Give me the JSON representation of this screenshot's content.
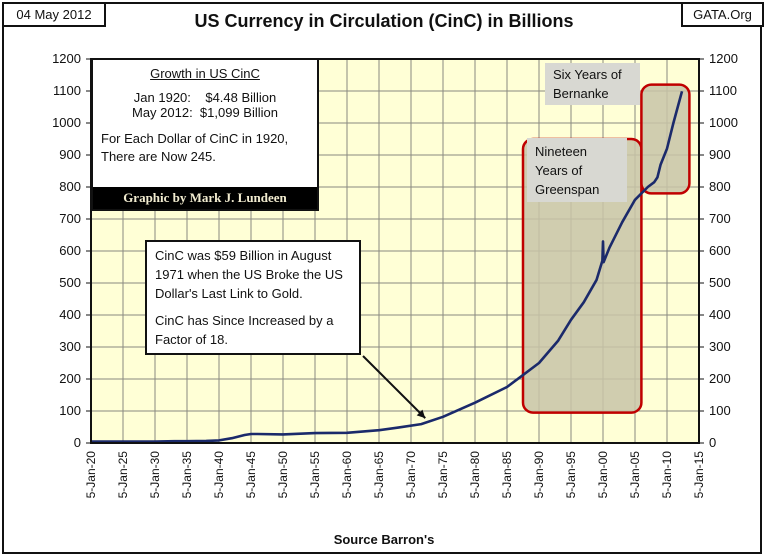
{
  "header": {
    "date": "04 May 2012",
    "title": "US Currency in Circulation (CinC) in Billions",
    "site": "GATA.Org"
  },
  "info_box": {
    "heading": "Growth in US CinC",
    "line1": "Jan 1920:    $4.48 Billion",
    "line2": "May 2012:  $1,099 Billion",
    "line3": "For Each Dollar of CinC in 1920,",
    "line4": "There are Now 245.",
    "credit": "Graphic by Mark J. Lundeen"
  },
  "note_box": {
    "para1": "CinC was $59 Billion in August 1971 when the US Broke the US Dollar's Last Link to Gold.",
    "para2": "CinC has Since Increased by a Factor of 18."
  },
  "labels": {
    "bernanke": [
      "Six Years of",
      "Bernanke"
    ],
    "greenspan": [
      "Nineteen",
      "Years of",
      "Greenspan"
    ]
  },
  "colors": {
    "plot_bg": "#ffffd6",
    "grid": "#8a8a80",
    "line": "#1b2a6b",
    "highlight": "#c00000",
    "shade": "#c8c4a8"
  },
  "chart_data": {
    "type": "line",
    "title": "US Currency in Circulation (CinC) in Billions",
    "xlabel": "Source Barron's",
    "ylabel": "",
    "ylim": [
      0,
      1200
    ],
    "yticks": [
      0,
      100,
      200,
      300,
      400,
      500,
      600,
      700,
      800,
      900,
      1000,
      1100,
      1200
    ],
    "xlim": [
      1920,
      2015
    ],
    "xtick_labels": [
      "5-Jan-20",
      "5-Jan-25",
      "5-Jan-30",
      "5-Jan-35",
      "5-Jan-40",
      "5-Jan-45",
      "5-Jan-50",
      "5-Jan-55",
      "5-Jan-60",
      "5-Jan-65",
      "5-Jan-70",
      "5-Jan-75",
      "5-Jan-80",
      "5-Jan-85",
      "5-Jan-90",
      "5-Jan-95",
      "5-Jan-00",
      "5-Jan-05",
      "5-Jan-10",
      "5-Jan-15"
    ],
    "xtick_years": [
      1920,
      1925,
      1930,
      1935,
      1940,
      1945,
      1950,
      1955,
      1960,
      1965,
      1970,
      1975,
      1980,
      1985,
      1990,
      1995,
      2000,
      2005,
      2010,
      2015
    ],
    "grid": true,
    "secondary_y_axis": true,
    "series": [
      {
        "name": "US Currency in Circulation",
        "x": [
          1920,
          1925,
          1930,
          1933,
          1935,
          1938,
          1940,
          1942,
          1944,
          1945,
          1946,
          1950,
          1955,
          1960,
          1965,
          1968,
          1971.6,
          1975,
          1980,
          1985,
          1987,
          1990,
          1993,
          1995,
          1997,
          1999,
          1999.9,
          2000.0,
          2000.1,
          2001,
          2003,
          2005,
          2007,
          2008,
          2008.5,
          2009,
          2010,
          2011,
          2012.35
        ],
        "y": [
          4.48,
          4.8,
          4.5,
          5.5,
          5.5,
          6.5,
          8,
          15,
          25,
          28,
          28,
          27,
          31,
          32,
          40,
          48,
          59,
          82,
          126,
          175,
          205,
          250,
          320,
          385,
          440,
          510,
          570,
          630,
          565,
          610,
          690,
          760,
          800,
          815,
          830,
          870,
          920,
          1000,
          1099
        ]
      }
    ],
    "annotations": [
      {
        "text": "CinC was $59 Billion in August 1971 when the US Broke the US Dollar's Last Link to Gold. CinC has Since Increased by a Factor of 18.",
        "points_to": {
          "x": 1971.6,
          "y": 59
        }
      },
      {
        "text": "Nineteen Years of Greenspan",
        "highlight_x": [
          1987.5,
          2006
        ],
        "highlight_y": [
          0,
          950
        ]
      },
      {
        "text": "Six Years of Bernanke",
        "highlight_x": [
          2006,
          2013.5
        ],
        "highlight_y": [
          780,
          1120
        ]
      }
    ],
    "legend": "none"
  }
}
